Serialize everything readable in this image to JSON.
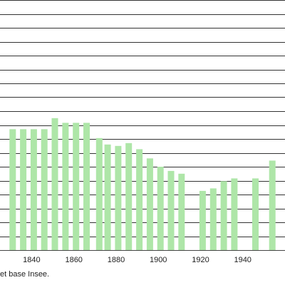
{
  "chart_data": {
    "type": "bar",
    "x": [
      1831,
      1836,
      1841,
      1846,
      1851,
      1856,
      1861,
      1866,
      1872,
      1876,
      1881,
      1886,
      1891,
      1896,
      1901,
      1906,
      1911,
      1921,
      1926,
      1931,
      1936,
      1946,
      1954
    ],
    "values": [
      435,
      435,
      435,
      435,
      475,
      458,
      458,
      458,
      403,
      380,
      375,
      385,
      363,
      330,
      300,
      285,
      275,
      213,
      222,
      248,
      258,
      258,
      322
    ],
    "xlim": [
      1825,
      1960
    ],
    "ylim": [
      0,
      900
    ],
    "ytick_step": 50,
    "xticks": [
      1840,
      1860,
      1880,
      1900,
      1920,
      1940
    ],
    "bar_color": "#aee6a8",
    "grid": true,
    "source_note": "et base Insee."
  }
}
